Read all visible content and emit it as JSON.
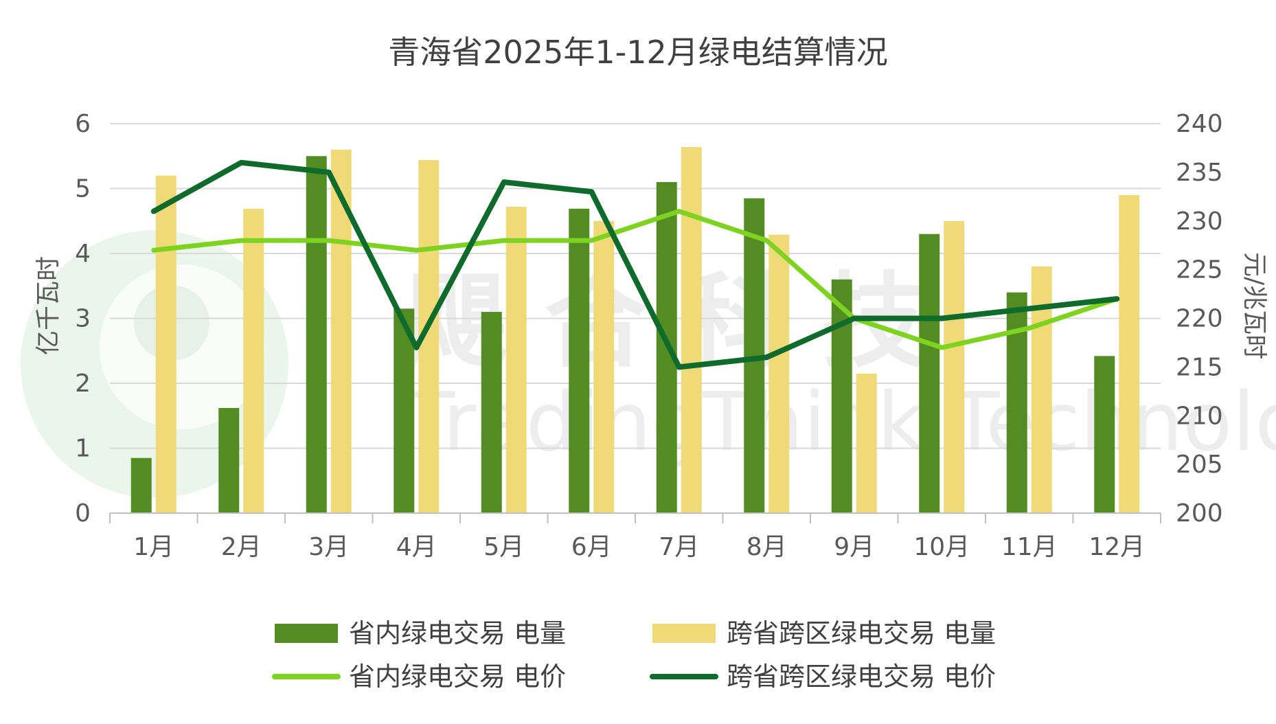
{
  "chart_data": {
    "type": "bar",
    "title": "青海省2025年1-12月绿电结算情况",
    "categories": [
      "1月",
      "2月",
      "3月",
      "4月",
      "5月",
      "6月",
      "7月",
      "8月",
      "9月",
      "10月",
      "11月",
      "12月"
    ],
    "y_left": {
      "label": "亿千瓦时",
      "range": [
        0,
        6
      ],
      "ticks": [
        "0",
        "1",
        "2",
        "3",
        "4",
        "5",
        "6"
      ]
    },
    "y_right": {
      "label": "元/兆瓦时",
      "range": [
        200,
        240
      ],
      "ticks": [
        "200",
        "205",
        "210",
        "215",
        "220",
        "225",
        "230",
        "235",
        "240"
      ]
    },
    "series": [
      {
        "name": "省内绿电交易 电量",
        "kind": "bar",
        "axis": "left",
        "color": "#548c24",
        "values": [
          0.85,
          1.62,
          5.5,
          3.15,
          3.1,
          4.69,
          5.1,
          4.85,
          3.6,
          4.3,
          3.4,
          2.42
        ]
      },
      {
        "name": "跨省跨区绿电交易 电量",
        "kind": "bar",
        "axis": "left",
        "color": "#f0da78",
        "values": [
          5.2,
          4.69,
          5.6,
          5.44,
          4.72,
          4.5,
          5.64,
          4.29,
          2.15,
          4.5,
          3.8,
          4.9
        ]
      },
      {
        "name": "省内绿电交易 电价",
        "kind": "line",
        "axis": "right",
        "color": "#7ed321",
        "values": [
          227,
          228,
          228,
          227,
          228,
          228,
          231,
          228,
          220,
          217,
          219,
          222
        ]
      },
      {
        "name": "跨省跨区绿电交易 电价",
        "kind": "line",
        "axis": "right",
        "color": "#0e6b2c",
        "values": [
          231,
          236,
          235,
          217,
          234,
          233,
          215,
          216,
          220,
          220,
          221,
          222
        ]
      }
    ],
    "grid": true,
    "legend_position": "bottom",
    "watermark": {
      "cn": "飓 合 科 技",
      "en": "TradingThink Technology"
    }
  }
}
